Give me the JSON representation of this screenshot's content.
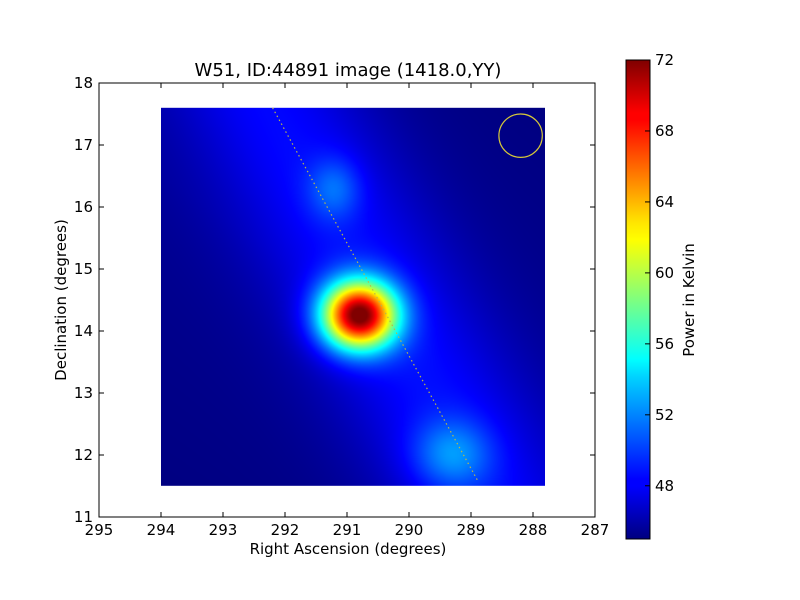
{
  "chart_data": {
    "type": "heatmap",
    "title": "W51, ID:44891 image (1418.0,YY)",
    "xlabel": "Right Ascension (degrees)",
    "ylabel": "Declination (degrees)",
    "xlim": [
      295,
      287
    ],
    "ylim": [
      11,
      18
    ],
    "x_ticks": [
      295,
      294,
      293,
      292,
      291,
      290,
      289,
      288,
      287
    ],
    "y_ticks": [
      11,
      12,
      13,
      14,
      15,
      16,
      17,
      18
    ],
    "x_tick_labels": [
      "295",
      "294",
      "293",
      "292",
      "291",
      "290",
      "289",
      "288",
      "287"
    ],
    "y_tick_labels": [
      "11",
      "12",
      "13",
      "14",
      "15",
      "16",
      "17",
      "18"
    ],
    "image_extent": {
      "ra": [
        294.0,
        287.8
      ],
      "dec": [
        11.5,
        17.6
      ]
    },
    "colormap": "jet",
    "colorbar": {
      "label": "Power in Kelvin",
      "vmin": 45,
      "vmax": 72,
      "ticks": [
        48,
        52,
        56,
        60,
        64,
        68,
        72
      ],
      "tick_labels": [
        "48",
        "52",
        "56",
        "60",
        "64",
        "68",
        "72"
      ]
    },
    "background_level": 47.5,
    "sources": [
      {
        "ra": 290.8,
        "dec": 14.25,
        "peak": 72,
        "sigma_ra": 0.42,
        "sigma_dec": 0.38
      },
      {
        "ra": 291.2,
        "dec": 16.3,
        "peak": 50.5,
        "sigma_ra": 0.3,
        "sigma_dec": 0.35
      },
      {
        "ra": 289.3,
        "dec": 12.0,
        "peak": 51.5,
        "sigma_ra": 0.45,
        "sigma_dec": 0.4
      }
    ],
    "galactic_plane_line": {
      "from": [
        292.2,
        17.6
      ],
      "to": [
        288.9,
        11.6
      ],
      "color": "#b8b84a"
    },
    "beam_circle": {
      "ra": 288.2,
      "dec": 17.15,
      "radius_deg": 0.35,
      "color": "#d6c83a"
    },
    "grid": false
  }
}
